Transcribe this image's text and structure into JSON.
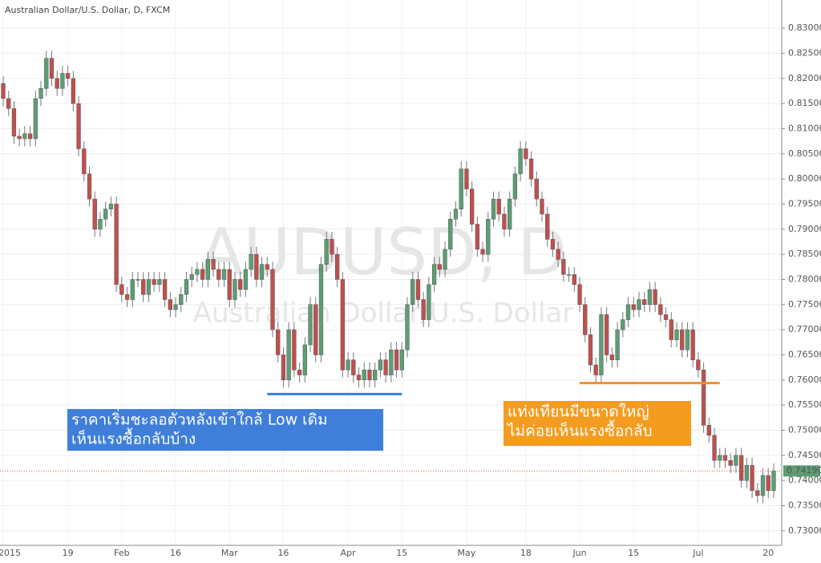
{
  "chart_data": {
    "type": "candlestick",
    "title": "Australian Dollar/U.S. Dollar, D, FXCM",
    "watermark": [
      "AUDUSD, D",
      "Australian Dollar/U.S. Dollar"
    ],
    "categories": [
      "2015",
      null,
      null,
      null,
      null,
      null,
      null,
      null,
      null,
      null,
      null,
      null,
      "19",
      null,
      null,
      null,
      null,
      null,
      null,
      null,
      null,
      null,
      "Feb",
      null,
      null,
      null,
      null,
      null,
      null,
      null,
      null,
      null,
      "16",
      null,
      null,
      null,
      null,
      null,
      null,
      null,
      null,
      null,
      "Mar",
      null,
      null,
      null,
      null,
      null,
      null,
      null,
      null,
      null,
      "16",
      null,
      null,
      null,
      null,
      null,
      null,
      null,
      null,
      null,
      null,
      null,
      "Apr",
      null,
      null,
      null,
      null,
      null,
      null,
      null,
      null,
      null,
      "15",
      null,
      null,
      null,
      null,
      null,
      null,
      null,
      null,
      null,
      null,
      null,
      "May",
      null,
      null,
      null,
      null,
      null,
      null,
      null,
      null,
      null,
      null,
      "18",
      null,
      null,
      null,
      null,
      null,
      null,
      null,
      null,
      null,
      "Jun",
      null,
      null,
      null,
      null,
      null,
      null,
      null,
      null,
      null,
      "15",
      null,
      null,
      null,
      null,
      null,
      null,
      null,
      null,
      null,
      null,
      null,
      "Jul",
      null,
      null,
      null,
      null,
      null,
      null,
      null,
      null,
      null,
      null,
      null,
      null,
      "20",
      null
    ],
    "open": [
      0.819,
      0.816,
      0.814,
      0.8085,
      0.808,
      0.809,
      0.808,
      0.816,
      0.818,
      0.824,
      0.82,
      0.818,
      0.821,
      0.82,
      0.815,
      0.806,
      0.801,
      0.796,
      0.79,
      0.792,
      0.794,
      0.795,
      0.779,
      0.777,
      0.776,
      0.78,
      0.78,
      0.777,
      0.78,
      0.779,
      0.78,
      0.776,
      0.774,
      0.775,
      0.777,
      0.78,
      0.781,
      0.782,
      0.78,
      0.784,
      0.782,
      0.78,
      0.782,
      0.776,
      0.78,
      0.778,
      0.782,
      0.785,
      0.78,
      0.783,
      0.782,
      0.77,
      0.765,
      0.76,
      0.77,
      0.762,
      0.761,
      0.767,
      0.775,
      0.765,
      0.783,
      0.788,
      0.785,
      0.78,
      0.762,
      0.764,
      0.761,
      0.76,
      0.762,
      0.76,
      0.762,
      0.764,
      0.761,
      0.766,
      0.762,
      0.766,
      0.775,
      0.78,
      0.776,
      0.772,
      0.779,
      0.783,
      0.782,
      0.786,
      0.792,
      0.794,
      0.802,
      0.798,
      0.791,
      0.786,
      0.785,
      0.792,
      0.796,
      0.793,
      0.79,
      0.796,
      0.801,
      0.806,
      0.804,
      0.8,
      0.796,
      0.793,
      0.788,
      0.786,
      0.784,
      0.781,
      0.781,
      0.779,
      0.775,
      0.769,
      0.763,
      0.761,
      0.773,
      0.765,
      0.764,
      0.77,
      0.772,
      0.775,
      0.774,
      0.776,
      0.775,
      0.778,
      0.775,
      0.773,
      0.772,
      0.768,
      0.77,
      0.766,
      0.77,
      0.764,
      0.762,
      0.751,
      0.749,
      0.744,
      0.745,
      0.744,
      0.743,
      0.745,
      0.74,
      0.743,
      0.738,
      0.737,
      0.741,
      0.738
    ],
    "high": [
      0.8205,
      0.8175,
      0.8155,
      0.81,
      0.8105,
      0.8105,
      0.8175,
      0.8195,
      0.8255,
      0.8255,
      0.8215,
      0.8225,
      0.8225,
      0.8215,
      0.8165,
      0.8075,
      0.8025,
      0.7975,
      0.7935,
      0.7955,
      0.7965,
      0.7965,
      0.7805,
      0.7785,
      0.7815,
      0.7815,
      0.7815,
      0.7815,
      0.7815,
      0.7815,
      0.7815,
      0.7775,
      0.7765,
      0.7785,
      0.7815,
      0.7825,
      0.7835,
      0.7835,
      0.7855,
      0.7855,
      0.7835,
      0.7835,
      0.7835,
      0.7815,
      0.7815,
      0.7835,
      0.7865,
      0.7865,
      0.7845,
      0.7845,
      0.7835,
      0.7715,
      0.7665,
      0.7715,
      0.7715,
      0.7635,
      0.7685,
      0.7765,
      0.7765,
      0.7845,
      0.7895,
      0.7895,
      0.7865,
      0.7815,
      0.7655,
      0.7655,
      0.7625,
      0.7635,
      0.7635,
      0.7635,
      0.7655,
      0.7655,
      0.7675,
      0.7675,
      0.7675,
      0.7765,
      0.7815,
      0.7815,
      0.7775,
      0.7805,
      0.7845,
      0.7845,
      0.7875,
      0.7935,
      0.7955,
      0.8035,
      0.8035,
      0.7995,
      0.7925,
      0.7875,
      0.7935,
      0.7975,
      0.7975,
      0.7945,
      0.7975,
      0.8025,
      0.8075,
      0.8075,
      0.8055,
      0.8015,
      0.7975,
      0.7945,
      0.7895,
      0.7875,
      0.7855,
      0.7825,
      0.7825,
      0.7805,
      0.7765,
      0.7705,
      0.7645,
      0.7745,
      0.7745,
      0.7665,
      0.7715,
      0.7735,
      0.7765,
      0.7765,
      0.7775,
      0.7775,
      0.7795,
      0.7795,
      0.7765,
      0.7745,
      0.7735,
      0.7715,
      0.7715,
      0.7715,
      0.7715,
      0.7655,
      0.7635,
      0.7525,
      0.7505,
      0.7465,
      0.7465,
      0.7455,
      0.7465,
      0.7465,
      0.7445,
      0.7445,
      0.7395,
      0.7425,
      0.7425,
      0.7434
    ],
    "low": [
      0.8145,
      0.8125,
      0.807,
      0.8065,
      0.8065,
      0.8065,
      0.8065,
      0.8145,
      0.8165,
      0.8185,
      0.8165,
      0.8165,
      0.8185,
      0.8135,
      0.8045,
      0.7995,
      0.7945,
      0.7885,
      0.7885,
      0.7905,
      0.7925,
      0.7775,
      0.7755,
      0.7745,
      0.7745,
      0.7785,
      0.7755,
      0.7755,
      0.7775,
      0.7775,
      0.7745,
      0.7725,
      0.7725,
      0.7735,
      0.7755,
      0.7785,
      0.7795,
      0.7785,
      0.7785,
      0.7805,
      0.7785,
      0.7785,
      0.7745,
      0.7745,
      0.7765,
      0.7765,
      0.7805,
      0.7785,
      0.7785,
      0.7805,
      0.7685,
      0.7635,
      0.7585,
      0.7585,
      0.7605,
      0.7595,
      0.7595,
      0.7655,
      0.7635,
      0.7635,
      0.7815,
      0.7835,
      0.7785,
      0.7605,
      0.7605,
      0.7595,
      0.7585,
      0.7585,
      0.7585,
      0.7585,
      0.7605,
      0.7595,
      0.7595,
      0.7605,
      0.7605,
      0.7645,
      0.7735,
      0.7745,
      0.7705,
      0.7705,
      0.7775,
      0.7805,
      0.7805,
      0.7845,
      0.7905,
      0.7925,
      0.7965,
      0.7895,
      0.7845,
      0.7835,
      0.7835,
      0.7905,
      0.7915,
      0.7885,
      0.7885,
      0.7945,
      0.7995,
      0.8025,
      0.7985,
      0.7945,
      0.7915,
      0.7865,
      0.7845,
      0.7825,
      0.7795,
      0.7795,
      0.7775,
      0.7735,
      0.7675,
      0.7615,
      0.7595,
      0.7595,
      0.7635,
      0.7625,
      0.7625,
      0.7685,
      0.7705,
      0.7725,
      0.7725,
      0.7735,
      0.7735,
      0.7735,
      0.7715,
      0.7705,
      0.7665,
      0.7665,
      0.7645,
      0.7645,
      0.7625,
      0.7605,
      0.7495,
      0.7475,
      0.7425,
      0.7425,
      0.7425,
      0.7415,
      0.7415,
      0.7385,
      0.7385,
      0.7365,
      0.7355,
      0.7355,
      0.7365,
      0.7365
    ],
    "close": [
      0.816,
      0.814,
      0.8085,
      0.808,
      0.809,
      0.808,
      0.816,
      0.818,
      0.824,
      0.82,
      0.818,
      0.821,
      0.82,
      0.815,
      0.806,
      0.801,
      0.796,
      0.79,
      0.792,
      0.794,
      0.795,
      0.779,
      0.777,
      0.776,
      0.78,
      0.78,
      0.777,
      0.78,
      0.779,
      0.78,
      0.776,
      0.774,
      0.775,
      0.777,
      0.78,
      0.781,
      0.782,
      0.78,
      0.784,
      0.782,
      0.78,
      0.782,
      0.776,
      0.78,
      0.778,
      0.782,
      0.785,
      0.78,
      0.783,
      0.782,
      0.77,
      0.765,
      0.76,
      0.77,
      0.762,
      0.761,
      0.767,
      0.775,
      0.765,
      0.783,
      0.788,
      0.785,
      0.78,
      0.762,
      0.764,
      0.761,
      0.76,
      0.762,
      0.76,
      0.762,
      0.764,
      0.761,
      0.766,
      0.762,
      0.766,
      0.775,
      0.78,
      0.776,
      0.772,
      0.779,
      0.783,
      0.782,
      0.786,
      0.792,
      0.794,
      0.802,
      0.798,
      0.791,
      0.786,
      0.785,
      0.792,
      0.796,
      0.793,
      0.79,
      0.796,
      0.801,
      0.806,
      0.804,
      0.8,
      0.796,
      0.793,
      0.788,
      0.786,
      0.784,
      0.781,
      0.781,
      0.779,
      0.775,
      0.769,
      0.763,
      0.761,
      0.773,
      0.765,
      0.764,
      0.77,
      0.772,
      0.775,
      0.774,
      0.776,
      0.775,
      0.778,
      0.775,
      0.773,
      0.772,
      0.768,
      0.77,
      0.766,
      0.77,
      0.764,
      0.762,
      0.751,
      0.749,
      0.744,
      0.745,
      0.744,
      0.743,
      0.745,
      0.74,
      0.743,
      0.738,
      0.737,
      0.741,
      0.738,
      0.7419
    ],
    "up_color": "#5c9e74",
    "down_color": "#c0504d",
    "ylim": [
      0.7271,
      0.8356
    ],
    "yticks": [
      {
        "value": 0.73,
        "label": "0.73000"
      },
      {
        "value": 0.735,
        "label": "0.73500"
      },
      {
        "value": 0.74,
        "label": "0.74000"
      },
      {
        "value": 0.745,
        "label": "0.74500"
      },
      {
        "value": 0.75,
        "label": "0.75000"
      },
      {
        "value": 0.755,
        "label": "0.75500"
      },
      {
        "value": 0.76,
        "label": "0.76000"
      },
      {
        "value": 0.765,
        "label": "0.76500"
      },
      {
        "value": 0.77,
        "label": "0.77000"
      },
      {
        "value": 0.775,
        "label": "0.77500"
      },
      {
        "value": 0.78,
        "label": "0.78000"
      },
      {
        "value": 0.785,
        "label": "0.78500"
      },
      {
        "value": 0.79,
        "label": "0.79000"
      },
      {
        "value": 0.795,
        "label": "0.79500"
      },
      {
        "value": 0.8,
        "label": "0.80000"
      },
      {
        "value": 0.805,
        "label": "0.80500"
      },
      {
        "value": 0.81,
        "label": "0.81000"
      },
      {
        "value": 0.815,
        "label": "0.81500"
      },
      {
        "value": 0.82,
        "label": "0.82000"
      },
      {
        "value": 0.825,
        "label": "0.82500"
      },
      {
        "value": 0.83,
        "label": "0.83000"
      }
    ],
    "last_price": {
      "value": 0.7419,
      "label": "0.74190",
      "color": "#5c9e74"
    },
    "levels": [
      {
        "value": 0.7572,
        "from": 49,
        "to": 74,
        "color": "#3a7fd5"
      },
      {
        "value": 0.7594,
        "from": 107,
        "to": 133,
        "color": "#f0912a"
      }
    ],
    "annotations": [
      {
        "lines": [
          "ราคาเริ่มชะลอตัวหลังเข้าใกล้ Low เดิม",
          "เห็นแรงซื้อกลับบ้าง"
        ],
        "color": "#3f7fd9"
      },
      {
        "lines": [
          "แท่งเทียนมีขนาดใหญ่",
          "ไม่ค่อยเห็นแรงซื้อกลับ"
        ],
        "color": "#f39c1f"
      }
    ]
  }
}
